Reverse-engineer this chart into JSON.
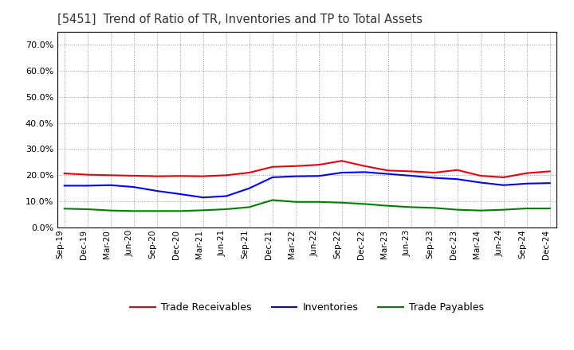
{
  "title": "[5451]  Trend of Ratio of TR, Inventories and TP to Total Assets",
  "x_labels": [
    "Sep-19",
    "Dec-19",
    "Mar-20",
    "Jun-20",
    "Sep-20",
    "Dec-20",
    "Mar-21",
    "Jun-21",
    "Sep-21",
    "Dec-21",
    "Mar-22",
    "Jun-22",
    "Sep-22",
    "Dec-22",
    "Mar-23",
    "Jun-23",
    "Sep-23",
    "Dec-23",
    "Mar-24",
    "Jun-24",
    "Sep-24",
    "Dec-24"
  ],
  "trade_receivables": [
    0.207,
    0.202,
    0.2,
    0.198,
    0.196,
    0.197,
    0.196,
    0.2,
    0.21,
    0.232,
    0.235,
    0.24,
    0.255,
    0.235,
    0.218,
    0.215,
    0.21,
    0.22,
    0.198,
    0.192,
    0.208,
    0.215
  ],
  "inventories": [
    0.16,
    0.16,
    0.162,
    0.155,
    0.14,
    0.128,
    0.115,
    0.12,
    0.15,
    0.192,
    0.196,
    0.197,
    0.21,
    0.212,
    0.205,
    0.198,
    0.19,
    0.185,
    0.172,
    0.162,
    0.168,
    0.17
  ],
  "trade_payables": [
    0.072,
    0.07,
    0.065,
    0.063,
    0.063,
    0.063,
    0.066,
    0.07,
    0.078,
    0.105,
    0.098,
    0.098,
    0.095,
    0.09,
    0.083,
    0.078,
    0.075,
    0.068,
    0.065,
    0.068,
    0.073,
    0.073
  ],
  "line_color_tr": "#e8000e",
  "line_color_inv": "#0000ff",
  "line_color_tp": "#008000",
  "ylim": [
    0.0,
    0.75
  ],
  "yticks": [
    0.0,
    0.1,
    0.2,
    0.3,
    0.4,
    0.5,
    0.6,
    0.7
  ],
  "background_color": "#ffffff",
  "grid_color": "#999999",
  "title_color": "#333333",
  "legend_labels": [
    "Trade Receivables",
    "Inventories",
    "Trade Payables"
  ],
  "spine_color": "#000000"
}
